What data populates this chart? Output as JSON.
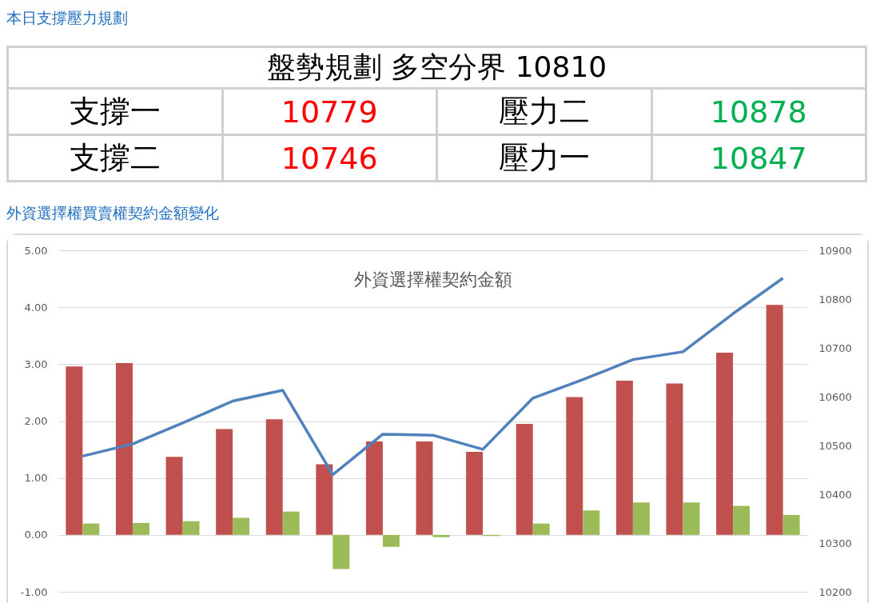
{
  "chart_data": [
    {
      "type": "other",
      "title": "本日支撐壓力規劃",
      "subtitle": "盤勢規劃 多空分界 10810",
      "categories": [
        "支撐一",
        "壓力二",
        "支撐二",
        "壓力一"
      ],
      "values": [
        10779,
        10878,
        10746,
        10847
      ],
      "colors": [
        "#ff0000",
        "#00b050",
        "#ff0000",
        "#00b050"
      ],
      "data_labels": true
    },
    {
      "type": "bar",
      "title": "外資選擇權契約金額",
      "annotations": [
        "外資選擇權買賣權契約金額變化"
      ],
      "categories": [
        null,
        null,
        null,
        null,
        null,
        null,
        null,
        null,
        null,
        null,
        null,
        null,
        null,
        null,
        null
      ],
      "series": [
        {
          "color": "#c0504d",
          "values": [
            2.96,
            3.02,
            1.37,
            1.86,
            2.03,
            1.24,
            1.64,
            1.64,
            1.46,
            1.95,
            2.42,
            2.71,
            2.66,
            3.2,
            4.04
          ]
        },
        {
          "color": "#9bbb59",
          "values": [
            0.2,
            0.21,
            0.24,
            0.3,
            0.41,
            -0.6,
            -0.21,
            -0.04,
            -0.02,
            0.2,
            0.43,
            0.57,
            0.57,
            0.51,
            0.35
          ]
        },
        {
          "type": "line",
          "axis": "y2",
          "color": "#4f81bd",
          "values": [
            10478,
            10503,
            10546,
            10591,
            10613,
            10440,
            10523,
            10521,
            10492,
            10597,
            10635,
            10676,
            10692,
            10770,
            10843
          ]
        }
      ],
      "ylim": [
        -1,
        5
      ],
      "yticks": [
        {
          "value": -1,
          "label": "-1.00"
        },
        {
          "value": 0,
          "label": "0.00"
        },
        {
          "value": 1,
          "label": "1.00"
        },
        {
          "value": 2,
          "label": "2.00"
        },
        {
          "value": 3,
          "label": "3.00"
        },
        {
          "value": 4,
          "label": "4.00"
        },
        {
          "value": 5,
          "label": "5.00"
        }
      ],
      "y2lim": [
        10200,
        10900
      ],
      "y2ticks": [
        10200,
        10300,
        10400,
        10500,
        10600,
        10700,
        10800,
        10900
      ],
      "grid": "y",
      "marker": "none",
      "line_style": "solid"
    }
  ]
}
